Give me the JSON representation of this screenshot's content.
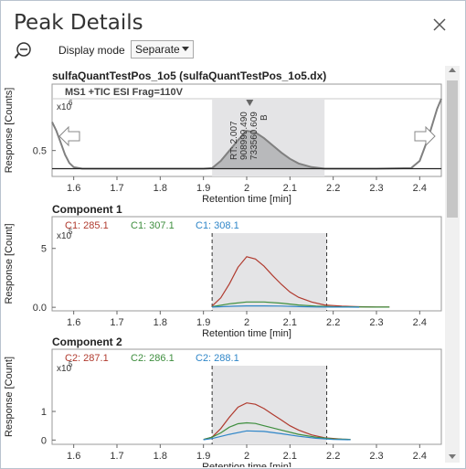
{
  "window": {
    "title": "Peak Details"
  },
  "toolbar": {
    "display_mode_label": "Display mode",
    "display_mode_value": "Separate"
  },
  "chart_data": [
    {
      "type": "line",
      "title": "sulfaQuantTestPos_1o5 (sulfaQuantTestPos_1o5.dx)",
      "subtitle": "MS1 +TIC ESI Frag=110V",
      "xlabel": "Retention time [min]",
      "ylabel": "Response [Counts]",
      "y_multiplier": "x10",
      "y_exponent": "6",
      "xlim": [
        1.55,
        2.45
      ],
      "ylim": [
        0,
        1.5
      ],
      "xticks": [
        "1.6",
        "1.7",
        "1.8",
        "1.9",
        "2",
        "2.1",
        "2.2",
        "2.3",
        "2.4"
      ],
      "yticks": [
        "0.5"
      ],
      "peak_region": [
        1.92,
        2.18
      ],
      "annotations": [
        "RT: 2.007",
        "908999.490",
        "733560.609",
        "B"
      ],
      "series": [
        {
          "color": "#808080",
          "x": [
            1.55,
            1.56,
            1.57,
            1.58,
            1.59,
            1.6,
            1.62,
            1.65,
            1.7,
            1.8,
            1.9,
            1.92,
            1.94,
            1.96,
            1.98,
            2.0,
            2.02,
            2.04,
            2.06,
            2.08,
            2.1,
            2.12,
            2.15,
            2.18,
            2.2,
            2.3,
            2.38,
            2.4,
            2.42,
            2.44,
            2.45
          ],
          "y": [
            1.05,
            0.88,
            0.65,
            0.42,
            0.26,
            0.18,
            0.15,
            0.15,
            0.15,
            0.15,
            0.15,
            0.16,
            0.3,
            0.5,
            0.7,
            0.88,
            0.85,
            0.74,
            0.6,
            0.46,
            0.34,
            0.25,
            0.18,
            0.15,
            0.15,
            0.15,
            0.16,
            0.3,
            0.75,
            1.3,
            1.6
          ]
        },
        {
          "color": "#222222",
          "x": [
            1.55,
            2.45
          ],
          "y": [
            0.15,
            0.15
          ]
        }
      ]
    },
    {
      "type": "line",
      "title": "Component 1",
      "xlabel": "Retention time [min]",
      "ylabel": "Response [Count]",
      "y_multiplier": "x10",
      "y_exponent": "5",
      "xlim": [
        1.55,
        2.45
      ],
      "ylim": [
        -0.3,
        6.3
      ],
      "xticks": [
        "1.6",
        "1.7",
        "1.8",
        "1.9",
        "2",
        "2.1",
        "2.2",
        "2.3",
        "2.4"
      ],
      "yticks": [
        "5",
        "0.0"
      ],
      "peak_region": [
        1.92,
        2.185
      ],
      "legend": [
        {
          "name": "C1: 285.1",
          "color": "#b03a2e"
        },
        {
          "name": "C1: 307.1",
          "color": "#3e8e3e"
        },
        {
          "name": "C1: 308.1",
          "color": "#2f86c8"
        }
      ],
      "series": [
        {
          "name": "C1: 285.1",
          "color": "#b03a2e",
          "x": [
            1.92,
            1.94,
            1.96,
            1.98,
            2.0,
            2.02,
            2.04,
            2.06,
            2.08,
            2.1,
            2.12,
            2.15,
            2.18,
            2.22,
            2.26,
            2.3,
            2.33
          ],
          "y": [
            0.1,
            0.8,
            2.0,
            3.4,
            4.3,
            4.1,
            3.5,
            2.7,
            1.95,
            1.3,
            0.85,
            0.45,
            0.2,
            0.1,
            0.05,
            0.03,
            0.02
          ]
        },
        {
          "name": "C1: 307.1",
          "color": "#3e8e3e",
          "x": [
            1.92,
            1.96,
            2.0,
            2.04,
            2.08,
            2.12,
            2.16,
            2.2,
            2.3,
            2.33
          ],
          "y": [
            0.05,
            0.3,
            0.45,
            0.45,
            0.35,
            0.2,
            0.1,
            0.05,
            0.02,
            0.02
          ]
        },
        {
          "name": "C1: 308.1",
          "color": "#2f86c8",
          "x": [
            1.92,
            1.96,
            2.0,
            2.04,
            2.08,
            2.12,
            2.16,
            2.2,
            2.26
          ],
          "y": [
            0.02,
            0.08,
            0.12,
            0.12,
            0.1,
            0.06,
            0.03,
            0.02,
            0.01
          ]
        }
      ]
    },
    {
      "type": "line",
      "title": "Component 2",
      "xlabel": "Retention time [min]",
      "ylabel": "Response [Count]",
      "y_multiplier": "x10",
      "y_exponent": "5",
      "xlim": [
        1.55,
        2.45
      ],
      "ylim": [
        -0.15,
        2.6
      ],
      "xticks": [
        "1.6",
        "1.7",
        "1.8",
        "1.9",
        "2",
        "2.1",
        "2.2",
        "2.3",
        "2.4"
      ],
      "yticks": [
        "1",
        "0"
      ],
      "peak_region": [
        1.92,
        2.185
      ],
      "legend": [
        {
          "name": "C2: 287.1",
          "color": "#b03a2e"
        },
        {
          "name": "C2: 286.1",
          "color": "#3e8e3e"
        },
        {
          "name": "C2: 288.1",
          "color": "#2f86c8"
        }
      ],
      "series": [
        {
          "name": "C2: 287.1",
          "color": "#b03a2e",
          "x": [
            1.9,
            1.92,
            1.94,
            1.96,
            1.98,
            2.0,
            2.02,
            2.04,
            2.06,
            2.08,
            2.1,
            2.12,
            2.15,
            2.18,
            2.22,
            2.24
          ],
          "y": [
            0.02,
            0.1,
            0.4,
            0.8,
            1.15,
            1.3,
            1.25,
            1.1,
            0.9,
            0.7,
            0.5,
            0.35,
            0.18,
            0.08,
            0.03,
            0.02
          ]
        },
        {
          "name": "C2: 286.1",
          "color": "#3e8e3e",
          "x": [
            1.9,
            1.92,
            1.94,
            1.96,
            1.98,
            2.0,
            2.02,
            2.04,
            2.08,
            2.12,
            2.16,
            2.2,
            2.24
          ],
          "y": [
            0.02,
            0.1,
            0.25,
            0.45,
            0.57,
            0.6,
            0.58,
            0.5,
            0.35,
            0.2,
            0.1,
            0.04,
            0.02
          ]
        },
        {
          "name": "C2: 288.1",
          "color": "#2f86c8",
          "x": [
            1.9,
            1.92,
            1.96,
            2.0,
            2.04,
            2.08,
            2.12,
            2.16,
            2.2,
            2.24
          ],
          "y": [
            0.01,
            0.05,
            0.2,
            0.32,
            0.3,
            0.22,
            0.13,
            0.06,
            0.02,
            0.01
          ]
        }
      ]
    }
  ]
}
